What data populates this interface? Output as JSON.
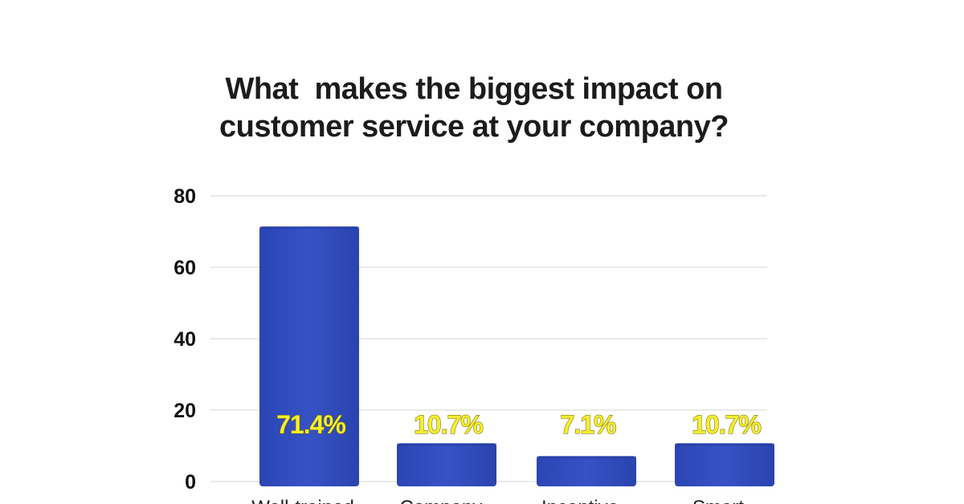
{
  "title_lines": [
    "What  makes the biggest impact on",
    "customer service at your company?"
  ],
  "colors": {
    "bar": "#3350c3",
    "bar_dark": "#22379a",
    "label": "#f5ef2a",
    "grid": "#d6d6d6"
  },
  "chart_data": {
    "type": "bar",
    "title": "What  makes the biggest impact on customer service at your company?",
    "categories": [
      "Well-trained...",
      "Company...",
      "Incentive...",
      "Smart..."
    ],
    "values": [
      71.4,
      10.7,
      7.1,
      10.7
    ],
    "data_labels": [
      "71.4%",
      "10.7%",
      "7.1%",
      "10.7%"
    ],
    "yticks": [
      0,
      20,
      40,
      60,
      80
    ],
    "ylim": [
      0,
      80
    ],
    "xlabel": "",
    "ylabel": "",
    "grid": true,
    "legend": "none"
  }
}
